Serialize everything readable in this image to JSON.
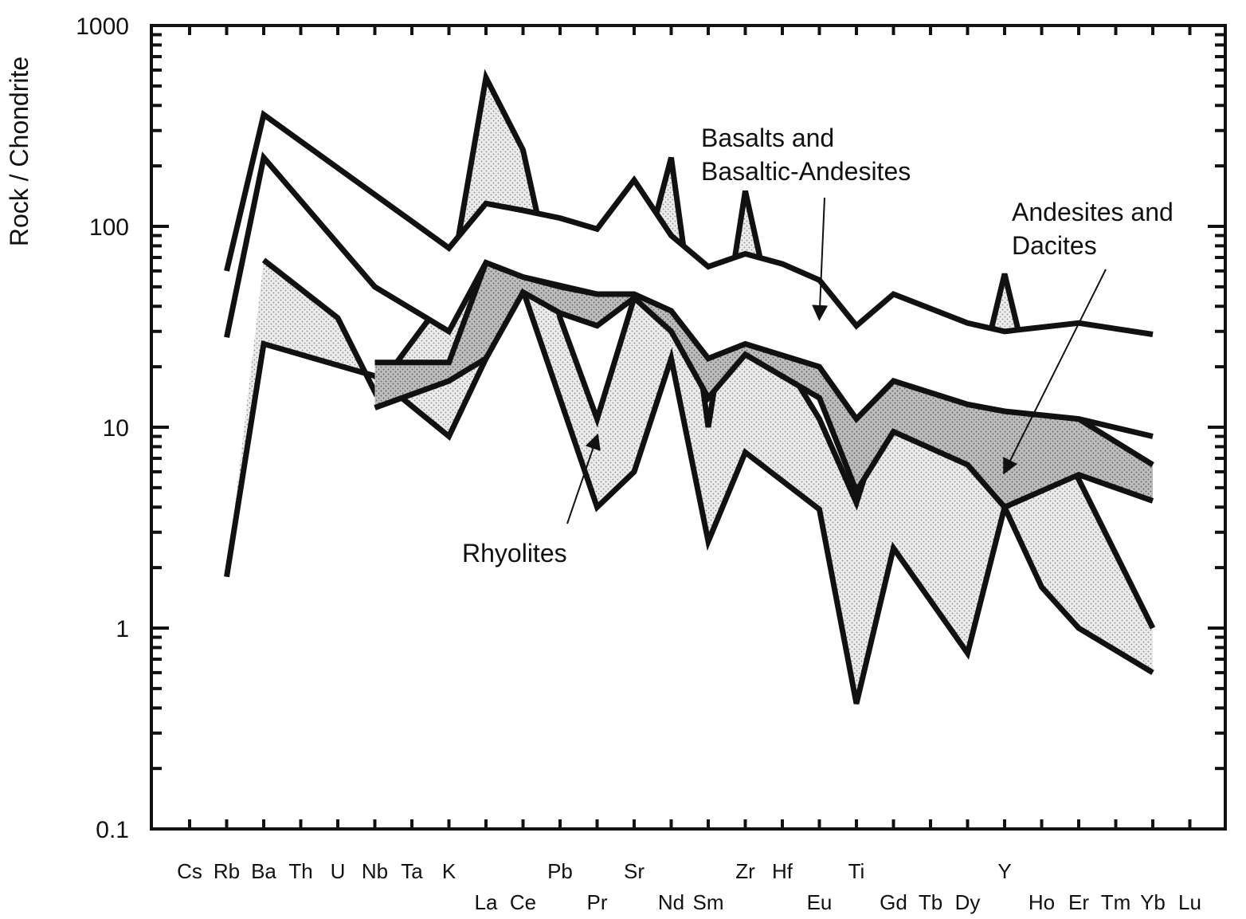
{
  "chart_data": {
    "type": "area",
    "title": "",
    "xlabel": "",
    "ylabel": "Rock / Chondrite",
    "yscale": "log",
    "ylim": [
      0.1,
      1000
    ],
    "yticks": [
      "1000",
      "100",
      "10",
      "1",
      "0.1"
    ],
    "categories": [
      "Cs",
      "Rb",
      "Ba",
      "Th",
      "U",
      "Nb",
      "Ta",
      "K",
      "La",
      "Ce",
      "Pb",
      "Pr",
      "Sr",
      "Nd",
      "Sm",
      "Zr",
      "Hf",
      "Eu",
      "Ti",
      "Gd",
      "Tb",
      "Dy",
      "Y",
      "Ho",
      "Er",
      "Tm",
      "Yb",
      "Lu"
    ],
    "series": [
      {
        "name": "Basalts and Basaltic-Andesites",
        "fill": "#ffffff",
        "upper": {
          "x": [
            "Rb",
            "Ba",
            "K",
            "La",
            "Ce",
            "Pb",
            "Pr",
            "Sr",
            "Nd",
            "Sm",
            "Zr",
            "Hf",
            "Eu",
            "Ti",
            "Gd",
            "Dy",
            "Y",
            "Er",
            "Yb"
          ],
          "y": [
            60,
            360,
            78,
            130,
            120,
            110,
            97,
            170,
            90,
            63,
            73,
            65,
            54,
            32,
            46,
            33,
            30,
            33,
            29
          ]
        },
        "lower": {
          "x": [
            "Rb",
            "Ba",
            "Nb",
            "K",
            "La",
            "Ce",
            "Pr",
            "Sr",
            "Nd",
            "Sm",
            "Zr",
            "Eu",
            "Ti",
            "Gd",
            "Dy",
            "Y",
            "Er",
            "Yb"
          ],
          "y": [
            28,
            220,
            50,
            30,
            66,
            56,
            46,
            46,
            38,
            22,
            26,
            20,
            11,
            17,
            13,
            12,
            11,
            9
          ]
        }
      },
      {
        "name": "Andesites and Dacites",
        "fill": "#b8b8b8",
        "upper": {
          "x": [
            "Nb",
            "Ta",
            "K",
            "La",
            "Ce",
            "Pb",
            "Pr",
            "Sr",
            "Nd",
            "Sm",
            "Zr",
            "Eu",
            "Ti",
            "Gd",
            "Dy",
            "Y",
            "Er",
            "Yb"
          ],
          "y": [
            21,
            21,
            21,
            66,
            56,
            50,
            46,
            46,
            38,
            22,
            26,
            20,
            11,
            17,
            13,
            12,
            11,
            6.5
          ]
        },
        "lower": {
          "x": [
            "Nb",
            "K",
            "La",
            "Ce",
            "Pb",
            "Pr",
            "Sr",
            "Nd",
            "Sm",
            "Zr",
            "Eu",
            "Ti",
            "Gd",
            "Dy",
            "Y",
            "Er",
            "Yb"
          ],
          "y": [
            12.5,
            17,
            22,
            47,
            37,
            32,
            44,
            30,
            14,
            23,
            14,
            4.8,
            9.5,
            6.5,
            4,
            5.8,
            4.3
          ]
        }
      },
      {
        "name": "Rhyolites",
        "fill": "#e0e0e0",
        "upper": {
          "x": [
            "Ba",
            "U",
            "Nb",
            "K",
            "La",
            "Ce",
            "Pb",
            "Pr",
            "Sr",
            "Nd",
            "Sm",
            "Zr",
            "Hf",
            "Eu",
            "Ti",
            "Gd",
            "Dy",
            "Y",
            "Ho",
            "Er",
            "Yb"
          ],
          "y": [
            68,
            35,
            15,
            47,
            550,
            240,
            35,
            11,
            44,
            220,
            10,
            150,
            22,
            11,
            4.2,
            16,
            10,
            58,
            10,
            5.5,
            1
          ]
        },
        "lower": {
          "x": [
            "Rb",
            "Ba",
            "Nb",
            "K",
            "La",
            "Ce",
            "Pr",
            "Sr",
            "Nd",
            "Sm",
            "Zr",
            "Eu",
            "Ti",
            "Gd",
            "Dy",
            "Y",
            "Ho",
            "Er",
            "Yb"
          ],
          "y": [
            1.8,
            26,
            18,
            9,
            22,
            48,
            4,
            6,
            22,
            2.7,
            7.5,
            3.9,
            0.42,
            2.5,
            0.75,
            4,
            1.6,
            1,
            0.6
          ]
        }
      }
    ],
    "annotations": [
      {
        "lines": [
          "Basalts and",
          "Basaltic-Andesites"
        ],
        "arrow_to": [
          "Eu",
          35
        ]
      },
      {
        "lines": [
          "Andesites and",
          "Dacites"
        ],
        "arrow_to": [
          "Y",
          6
        ]
      },
      {
        "lines": [
          "Rhyolites"
        ],
        "arrow_to": [
          "Pr",
          9
        ]
      }
    ],
    "grid": false,
    "legend": "none"
  }
}
